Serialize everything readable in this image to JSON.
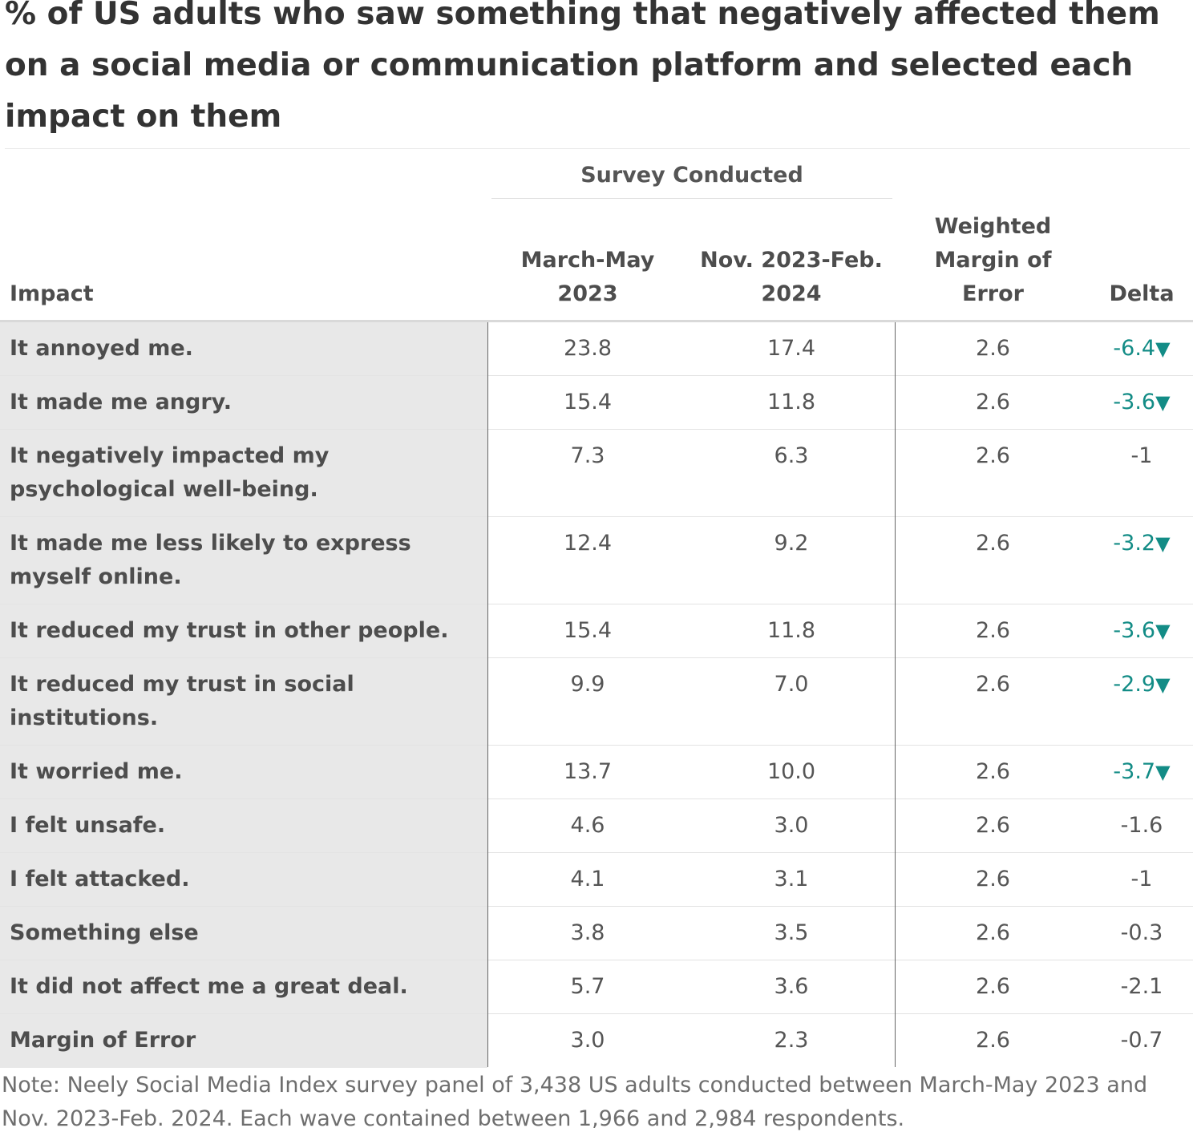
{
  "title": "% of US adults who saw something that negatively affected them on a social media or communication platform and selected each impact on them",
  "note": "Note: Neely Social Media Index survey panel of 3,438 US adults conducted between March-May 2023 and Nov. 2023-Feb. 2024. Each wave contained between 1,966 and 2,984 respondents.",
  "colors": {
    "negative_delta": "#138c86",
    "label_column_bg": "#e8e8e8"
  },
  "chart_data": {
    "type": "table",
    "title": "% of US adults who saw something that negatively affected them on a social media or communication platform and selected each impact on them",
    "group_header": "Survey Conducted",
    "columns": {
      "impact": "Impact",
      "wave1_line1": "March-May",
      "wave1_line2": "2023",
      "wave2_line1": "Nov. 2023-Feb.",
      "wave2_line2": "2024",
      "moe_line1": "Weighted",
      "moe_line2": "Margin of",
      "moe_line3": "Error",
      "delta": "Delta"
    },
    "rows": [
      {
        "impact": "It annoyed me.",
        "wave1": "23.8",
        "wave2": "17.4",
        "moe": "2.6",
        "delta": "-6.4",
        "significant": true,
        "height": 67
      },
      {
        "impact": "It made me angry.",
        "wave1": "15.4",
        "wave2": "11.8",
        "moe": "2.6",
        "delta": "-3.6",
        "significant": true,
        "height": 67
      },
      {
        "impact": "It negatively impacted my psychological well-being.",
        "wave1": "7.3",
        "wave2": "6.3",
        "moe": "2.6",
        "delta": "-1",
        "significant": false,
        "height": 109
      },
      {
        "impact": "It made me less likely to express myself online.",
        "wave1": "12.4",
        "wave2": "9.2",
        "moe": "2.6",
        "delta": "-3.2",
        "significant": true,
        "height": 109
      },
      {
        "impact": "It reduced my trust in other people.",
        "wave1": "15.4",
        "wave2": "11.8",
        "moe": "2.6",
        "delta": "-3.6",
        "significant": true,
        "height": 67
      },
      {
        "impact": "It reduced my trust in social institutions.",
        "wave1": "9.9",
        "wave2": "7.0",
        "moe": "2.6",
        "delta": "-2.9",
        "significant": true,
        "height": 109
      },
      {
        "impact": "It worried me.",
        "wave1": "13.7",
        "wave2": "10.0",
        "moe": "2.6",
        "delta": "-3.7",
        "significant": true,
        "height": 67
      },
      {
        "impact": "I felt unsafe.",
        "wave1": "4.6",
        "wave2": "3.0",
        "moe": "2.6",
        "delta": "-1.6",
        "significant": false,
        "height": 67
      },
      {
        "impact": "I felt attacked.",
        "wave1": "4.1",
        "wave2": "3.1",
        "moe": "2.6",
        "delta": "-1",
        "significant": false,
        "height": 67
      },
      {
        "impact": "Something else",
        "wave1": "3.8",
        "wave2": "3.5",
        "moe": "2.6",
        "delta": "-0.3",
        "significant": false,
        "height": 67
      },
      {
        "impact": "It did not affect me a great deal.",
        "wave1": "5.7",
        "wave2": "3.6",
        "moe": "2.6",
        "delta": "-2.1",
        "significant": false,
        "height": 67
      },
      {
        "impact": "Margin of Error",
        "wave1": "3.0",
        "wave2": "2.3",
        "moe": "2.6",
        "delta": "-0.7",
        "significant": false,
        "height": 67
      }
    ]
  }
}
